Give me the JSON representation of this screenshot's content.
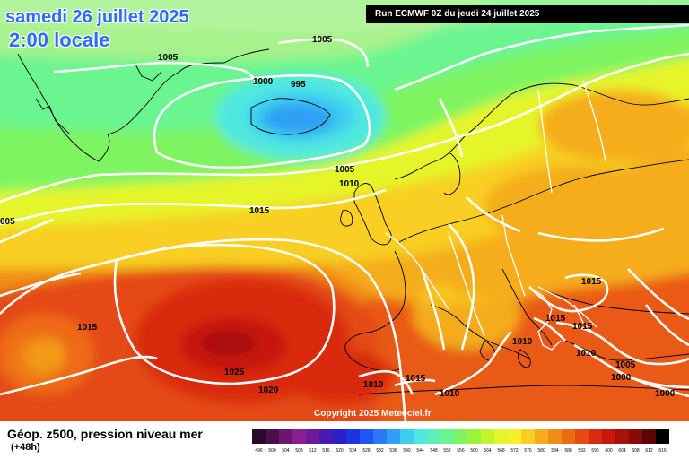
{
  "header": {
    "date": "samedi 26 juillet 2025",
    "time": "2:00 locale",
    "run": "Run ECMWF 0Z du jeudi 24 juillet 2025"
  },
  "copyright": "Copyright 2025 Meteociel.fr",
  "legend": {
    "title": "Géop. z500, pression niveau mer",
    "subtitle": "(+48h)",
    "scale": [
      {
        "label": "496",
        "color": "#2a0a2a"
      },
      {
        "label": "500",
        "color": "#4b0f4b"
      },
      {
        "label": "504",
        "color": "#6b1670"
      },
      {
        "label": "508",
        "color": "#8a1e93"
      },
      {
        "label": "512",
        "color": "#6b1a9a"
      },
      {
        "label": "516",
        "color": "#4a1ab0"
      },
      {
        "label": "520",
        "color": "#2a20c8"
      },
      {
        "label": "524",
        "color": "#1c35e0"
      },
      {
        "label": "528",
        "color": "#1f55f0"
      },
      {
        "label": "532",
        "color": "#2a78f5"
      },
      {
        "label": "536",
        "color": "#2fa0f5"
      },
      {
        "label": "540",
        "color": "#3ccdf0"
      },
      {
        "label": "544",
        "color": "#4fe8e0"
      },
      {
        "label": "548",
        "color": "#5cf0b8"
      },
      {
        "label": "552",
        "color": "#6af590"
      },
      {
        "label": "556",
        "color": "#7ef560"
      },
      {
        "label": "560",
        "color": "#9af53a"
      },
      {
        "label": "564",
        "color": "#c2f52a"
      },
      {
        "label": "568",
        "color": "#e6f52a"
      },
      {
        "label": "572",
        "color": "#f8ee2a"
      },
      {
        "label": "576",
        "color": "#f8cf20"
      },
      {
        "label": "580",
        "color": "#f5ad1a"
      },
      {
        "label": "584",
        "color": "#f08c16"
      },
      {
        "label": "588",
        "color": "#ea6b14"
      },
      {
        "label": "592",
        "color": "#e44a12"
      },
      {
        "label": "596",
        "color": "#da2a10"
      },
      {
        "label": "600",
        "color": "#c8180e"
      },
      {
        "label": "604",
        "color": "#a8100c"
      },
      {
        "label": "608",
        "color": "#880a0a"
      },
      {
        "label": "612",
        "color": "#5a0606"
      },
      {
        "label": "616",
        "color": "#000000"
      }
    ]
  },
  "isobar_labels": [
    {
      "text": "1005",
      "name": "label-1005-north"
    },
    {
      "text": "1005",
      "name": "label-1005-greenland"
    },
    {
      "text": "1000",
      "name": "label-1000-iceland"
    },
    {
      "text": "995",
      "name": "label-995-iceland"
    },
    {
      "text": "1005",
      "name": "label-1005-uk-north"
    },
    {
      "text": "1010",
      "name": "label-1010-uk"
    },
    {
      "text": "1015",
      "name": "label-1015-atlantic"
    },
    {
      "text": "005",
      "name": "label-005-west-edge"
    },
    {
      "text": "1015",
      "name": "label-1015-azores-west"
    },
    {
      "text": "1025",
      "name": "label-1025-high"
    },
    {
      "text": "1020",
      "name": "label-1020-south"
    },
    {
      "text": "1010",
      "name": "label-1010-iberia"
    },
    {
      "text": "1015",
      "name": "label-1015-gibraltar"
    },
    {
      "text": "1010",
      "name": "label-1010-algeria"
    },
    {
      "text": "1015",
      "name": "label-1015-balkans"
    },
    {
      "text": "1015",
      "name": "label-1015-adriatic"
    },
    {
      "text": "1015",
      "name": "label-1015-greece-north"
    },
    {
      "text": "1010",
      "name": "label-1010-italy"
    },
    {
      "text": "1010",
      "name": "label-1010-greece"
    },
    {
      "text": "1005",
      "name": "label-1005-turkey"
    },
    {
      "text": "1000",
      "name": "label-1000-cyprus"
    },
    {
      "text": "1000",
      "name": "label-1000-east-edge"
    }
  ]
}
